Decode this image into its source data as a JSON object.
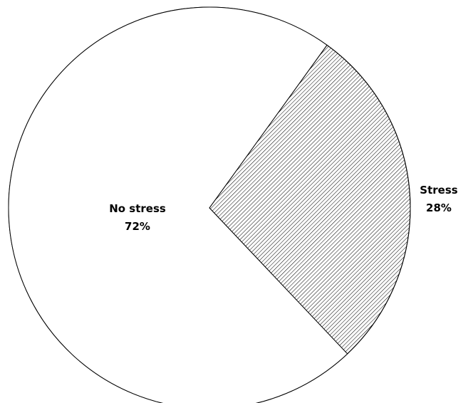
{
  "chart_data": {
    "type": "pie",
    "slices": [
      {
        "label": "No stress",
        "value_label": "72%",
        "value": 72,
        "fill": "none"
      },
      {
        "label": "Stress",
        "value_label": "28%",
        "value": 28,
        "fill": "hatch"
      }
    ],
    "colors": {
      "background": "#ffffff",
      "outline": "#000000",
      "hatch": "#000000"
    }
  }
}
